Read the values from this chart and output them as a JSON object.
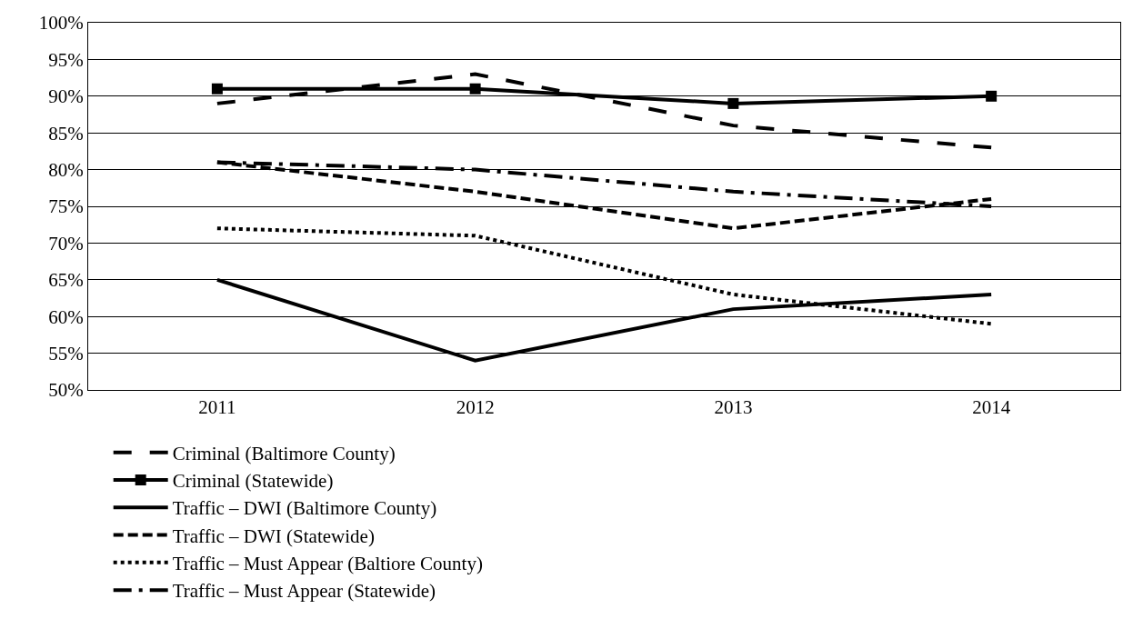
{
  "chart_data": {
    "type": "line",
    "categories": [
      "2011",
      "2012",
      "2013",
      "2014"
    ],
    "series": [
      {
        "name": "Criminal (Baltimore County)",
        "color": "#000000",
        "values": [
          89,
          93,
          86,
          83
        ],
        "line_style": "long dashed",
        "marker": "none"
      },
      {
        "name": "Criminal (Statewide)",
        "color": "#000000",
        "values": [
          91,
          91,
          89,
          90
        ],
        "line_style": "solid",
        "marker": "square"
      },
      {
        "name": "Traffic – DWI (Baltimore County)",
        "color": "#000000",
        "values": [
          65,
          54,
          61,
          63
        ],
        "line_style": "solid",
        "marker": "none"
      },
      {
        "name": "Traffic – DWI (Statewide)",
        "color": "#000000",
        "values": [
          81,
          77,
          72,
          76
        ],
        "line_style": "dashed",
        "marker": "none"
      },
      {
        "name": "Traffic – Must Appear (Baltiore County)",
        "color": "#000000",
        "values": [
          72,
          71,
          63,
          59
        ],
        "line_style": "dotted",
        "marker": "none"
      },
      {
        "name": "Traffic – Must Appear (Statewide)",
        "color": "#000000",
        "values": [
          81,
          80,
          77,
          75
        ],
        "line_style": "long dash-dot",
        "marker": "none"
      }
    ],
    "ylim": [
      50,
      100
    ],
    "yticks": [
      {
        "value": 50,
        "label": "50%"
      },
      {
        "value": 55,
        "label": "55%"
      },
      {
        "value": 60,
        "label": "60%"
      },
      {
        "value": 65,
        "label": "65%"
      },
      {
        "value": 70,
        "label": "70%"
      },
      {
        "value": 75,
        "label": "75%"
      },
      {
        "value": 80,
        "label": "80%"
      },
      {
        "value": 85,
        "label": "85%"
      },
      {
        "value": 90,
        "label": "90%"
      },
      {
        "value": 95,
        "label": "95%"
      },
      {
        "value": 100,
        "label": "100%"
      }
    ],
    "grid": "y",
    "legend": "bottom"
  }
}
